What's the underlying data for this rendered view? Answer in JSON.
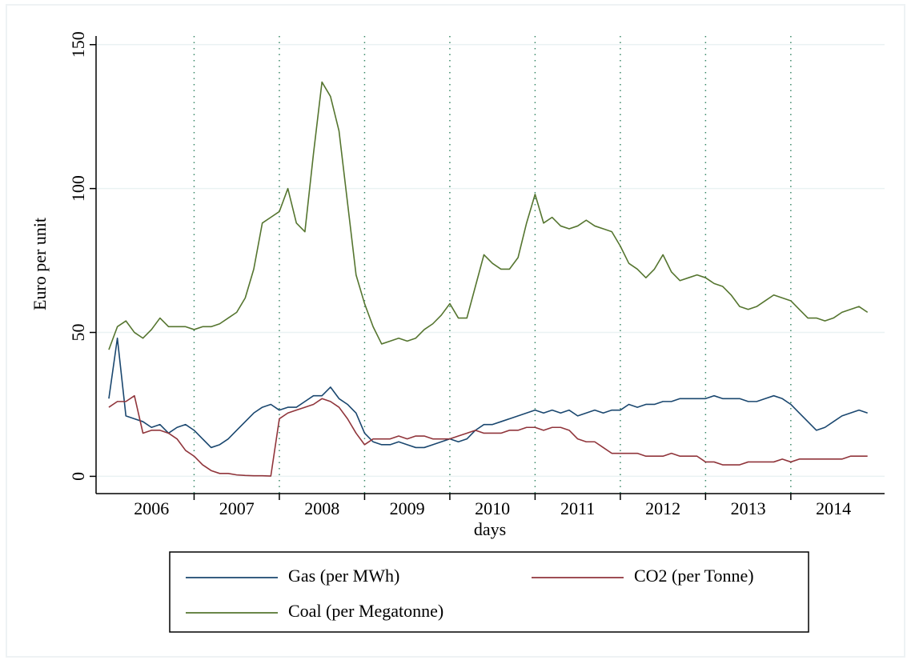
{
  "chart_data": {
    "type": "line",
    "y_label": "Euro per unit",
    "x_label": "days",
    "x": [
      2006,
      2006.1,
      2006.2,
      2006.3,
      2006.4,
      2006.5,
      2006.6,
      2006.7,
      2006.8,
      2006.9,
      2007,
      2007.1,
      2007.2,
      2007.3,
      2007.4,
      2007.5,
      2007.6,
      2007.7,
      2007.8,
      2007.9,
      2008,
      2008.1,
      2008.2,
      2008.3,
      2008.4,
      2008.5,
      2008.6,
      2008.7,
      2008.8,
      2008.9,
      2009,
      2009.1,
      2009.2,
      2009.3,
      2009.4,
      2009.5,
      2009.6,
      2009.7,
      2009.8,
      2009.9,
      2010,
      2010.1,
      2010.2,
      2010.3,
      2010.4,
      2010.5,
      2010.6,
      2010.7,
      2010.8,
      2010.9,
      2011,
      2011.1,
      2011.2,
      2011.3,
      2011.4,
      2011.5,
      2011.6,
      2011.7,
      2011.8,
      2011.9,
      2012,
      2012.1,
      2012.2,
      2012.3,
      2012.4,
      2012.5,
      2012.6,
      2012.7,
      2012.8,
      2012.9,
      2013,
      2013.1,
      2013.2,
      2013.3,
      2013.4,
      2013.5,
      2013.6,
      2013.7,
      2013.8,
      2013.9,
      2014,
      2014.1,
      2014.2,
      2014.3,
      2014.4,
      2014.5,
      2014.6,
      2014.7,
      2014.8,
      2014.9
    ],
    "series": [
      {
        "name": "Gas (per MWh)",
        "color": "#1a476f",
        "values": [
          27,
          48,
          21,
          20,
          19,
          17,
          18,
          15,
          17,
          18,
          16,
          13,
          10,
          11,
          13,
          16,
          19,
          22,
          24,
          25,
          23,
          24,
          24,
          26,
          28,
          28,
          31,
          27,
          25,
          22,
          15,
          12,
          11,
          11,
          12,
          11,
          10,
          10,
          11,
          12,
          13,
          12,
          13,
          16,
          18,
          18,
          19,
          20,
          21,
          22,
          23,
          22,
          23,
          22,
          23,
          21,
          22,
          23,
          22,
          23,
          23,
          25,
          24,
          25,
          25,
          26,
          26,
          27,
          27,
          27,
          27,
          28,
          27,
          27,
          27,
          26,
          26,
          27,
          28,
          27,
          25,
          22,
          19,
          16,
          17,
          19,
          21,
          22,
          23,
          22
        ]
      },
      {
        "name": "CO2 (per Tonne)",
        "color": "#90353b",
        "values": [
          24,
          26,
          26,
          28,
          15,
          16,
          16,
          15,
          13,
          9,
          7,
          4,
          2,
          1,
          1,
          0.5,
          0.3,
          0.2,
          0.2,
          0.1,
          20,
          22,
          23,
          24,
          25,
          27,
          26,
          24,
          20,
          15,
          11,
          13,
          13,
          13,
          14,
          13,
          14,
          14,
          13,
          13,
          13,
          14,
          15,
          16,
          15,
          15,
          15,
          16,
          16,
          17,
          17,
          16,
          17,
          17,
          16,
          13,
          12,
          12,
          10,
          8,
          8,
          8,
          8,
          7,
          7,
          7,
          8,
          7,
          7,
          7,
          5,
          5,
          4,
          4,
          4,
          5,
          5,
          5,
          5,
          6,
          5,
          6,
          6,
          6,
          6,
          6,
          6,
          7,
          7,
          7
        ]
      },
      {
        "name": "Coal (per Megatonne)",
        "color": "#55752f",
        "values": [
          44,
          52,
          54,
          50,
          48,
          51,
          55,
          52,
          52,
          52,
          51,
          52,
          52,
          53,
          55,
          57,
          62,
          72,
          88,
          90,
          92,
          100,
          88,
          85,
          112,
          137,
          132,
          120,
          95,
          70,
          60,
          52,
          46,
          47,
          48,
          47,
          48,
          51,
          53,
          56,
          60,
          55,
          55,
          66,
          77,
          74,
          72,
          72,
          76,
          88,
          98,
          88,
          90,
          87,
          86,
          87,
          89,
          87,
          86,
          85,
          80,
          74,
          72,
          69,
          72,
          77,
          71,
          68,
          69,
          70,
          69,
          67,
          66,
          63,
          59,
          58,
          59,
          61,
          63,
          62,
          61,
          58,
          55,
          55,
          54,
          55,
          57,
          58,
          59,
          57
        ]
      }
    ],
    "xlim": [
      2005.85,
      2015.1
    ],
    "ylim": [
      -6,
      153
    ],
    "yticks": [
      0,
      50,
      100,
      150
    ],
    "xticks": [
      {
        "value": 2006.5,
        "label": "2006"
      },
      {
        "value": 2007.5,
        "label": "2007"
      },
      {
        "value": 2008.5,
        "label": "2008"
      },
      {
        "value": 2009.5,
        "label": "2009"
      },
      {
        "value": 2010.5,
        "label": "2010"
      },
      {
        "value": 2011.5,
        "label": "2011"
      },
      {
        "value": 2012.5,
        "label": "2012"
      },
      {
        "value": 2013.5,
        "label": "2013"
      },
      {
        "value": 2014.5,
        "label": "2014"
      }
    ],
    "xgrid": [
      2007,
      2008,
      2009,
      2010,
      2011,
      2012,
      2013,
      2014
    ],
    "grid": true,
    "legend": "bottom"
  }
}
